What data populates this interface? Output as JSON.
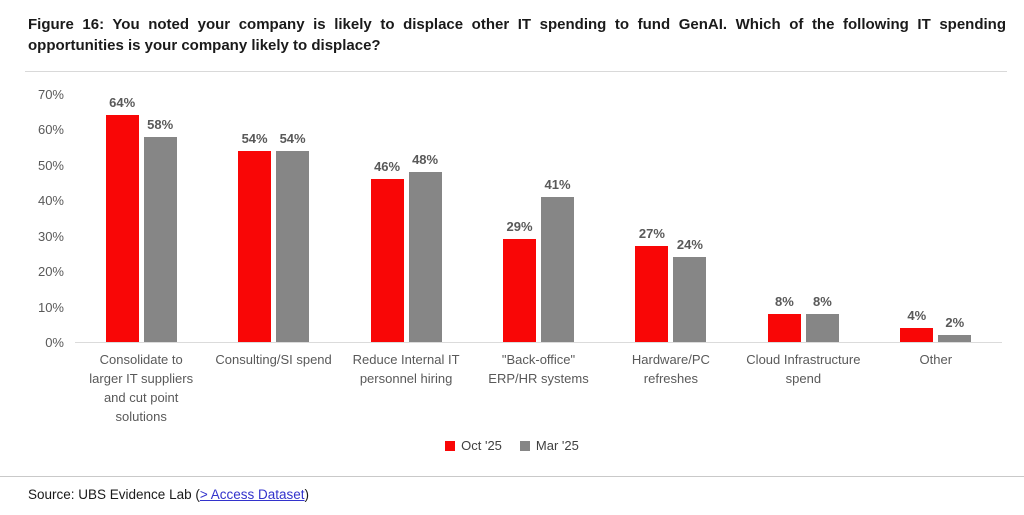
{
  "figure": {
    "title": "Figure 16: You noted your company is likely to displace other IT spending to fund GenAI. Which of the following IT spending opportunities is your company likely to displace?"
  },
  "chart_data": {
    "type": "bar",
    "title": "Figure 16: You noted your company is likely to displace other IT spending to fund GenAI. Which of the following IT spending opportunities is your company likely to displace?",
    "categories": [
      "Consolidate to larger IT suppliers and cut point solutions",
      "Consulting/SI spend",
      "Reduce Internal IT personnel hiring",
      "\"Back-office\" ERP/HR systems",
      "Hardware/PC refreshes",
      "Cloud Infrastructure spend",
      "Other"
    ],
    "categories_wrapped": [
      [
        "Consolidate to",
        "larger IT suppliers",
        "and cut point",
        "solutions"
      ],
      [
        "Consulting/SI spend"
      ],
      [
        "Reduce Internal IT",
        "personnel hiring"
      ],
      [
        "\"Back-office\"",
        "ERP/HR systems"
      ],
      [
        "Hardware/PC",
        "refreshes"
      ],
      [
        "Cloud Infrastructure",
        "spend"
      ],
      [
        "Other"
      ]
    ],
    "series": [
      {
        "name": "Oct '25",
        "color": "#f90606",
        "values": [
          64,
          54,
          46,
          29,
          27,
          8,
          4
        ]
      },
      {
        "name": "Mar '25",
        "color": "#868686",
        "values": [
          58,
          54,
          48,
          41,
          24,
          8,
          2
        ]
      }
    ],
    "value_label_suffix": "%",
    "xlabel": "",
    "ylabel": "",
    "ylim": [
      0,
      70
    ],
    "ytick_step": 10,
    "ytick_labels": [
      "0%",
      "10%",
      "20%",
      "30%",
      "40%",
      "50%",
      "60%",
      "70%"
    ],
    "grid": false,
    "legend_position": "bottom"
  },
  "source": {
    "prefix": "Source: UBS Evidence Lab (",
    "link_text": "> Access Dataset",
    "suffix": ")"
  },
  "colors": {
    "oct_25_bar": "#f90606",
    "mar_25_bar": "#868686",
    "axis_text": "#595959",
    "axis_line": "#dbdbdb",
    "link": "#3333cc",
    "title_text": "#1a1a1a"
  }
}
